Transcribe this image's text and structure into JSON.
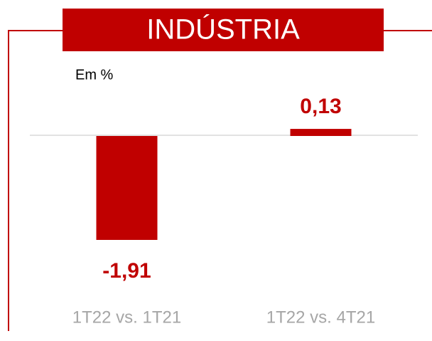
{
  "chart_data": {
    "type": "bar",
    "title": "INDÚSTRIA",
    "subtitle": "Em %",
    "categories": [
      "1T22 vs. 1T21",
      "1T22 vs. 4T21"
    ],
    "values": [
      -1.91,
      0.13
    ],
    "value_labels": [
      "-1,91",
      "0,13"
    ],
    "color": "#c00000"
  }
}
